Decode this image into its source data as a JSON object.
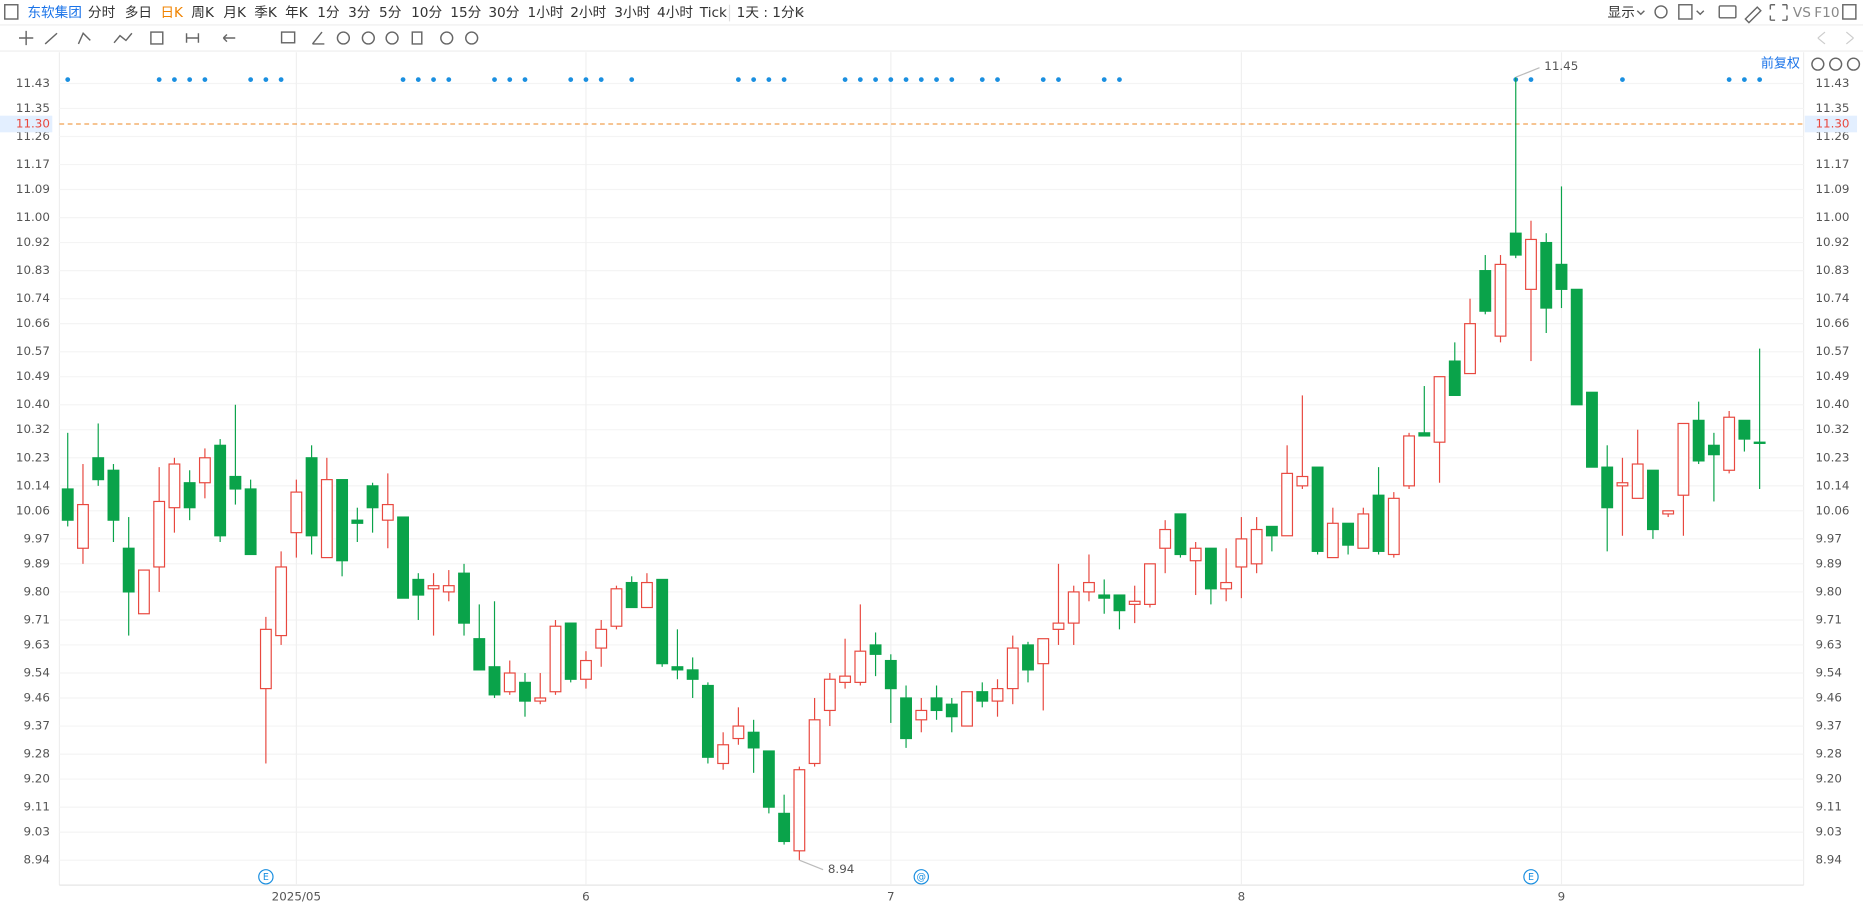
{
  "toolbar": {
    "stock": "东软集团",
    "periods": [
      "分时",
      "多日",
      "日K",
      "周K",
      "月K",
      "季K",
      "年K",
      "1分",
      "3分",
      "5分",
      "10分",
      "15分",
      "30分",
      "1小时",
      "2小时",
      "3小时",
      "4小时",
      "Tick"
    ],
    "range": "1天 : 1分K",
    "display": "显示",
    "vs": "VS",
    "f10": "F10",
    "adjust": "前复权"
  },
  "chart_data": {
    "type": "candlestick",
    "up_color": "#e8483f",
    "down_color": "#0aa34a",
    "grid": true,
    "categories": [
      null,
      null,
      null,
      null,
      null,
      null,
      null,
      null,
      null,
      null,
      null,
      null,
      null,
      null,
      null,
      "2025/05",
      null,
      null,
      null,
      null,
      null,
      null,
      null,
      null,
      null,
      null,
      null,
      null,
      null,
      null,
      null,
      null,
      null,
      null,
      "6",
      null,
      null,
      null,
      null,
      null,
      null,
      null,
      null,
      null,
      null,
      null,
      null,
      null,
      null,
      null,
      null,
      null,
      null,
      null,
      "7",
      null,
      null,
      null,
      null,
      null,
      null,
      null,
      null,
      null,
      null,
      null,
      null,
      null,
      null,
      null,
      null,
      null,
      null,
      null,
      null,
      null,
      null,
      "8",
      null,
      null,
      null,
      null,
      null,
      null,
      null,
      null,
      null,
      null,
      null,
      null,
      null,
      null,
      null,
      null,
      null,
      null,
      null,
      null,
      "9",
      null,
      null,
      null,
      null,
      null,
      null,
      null,
      null,
      null,
      null,
      null,
      null,
      null
    ],
    "open": [
      10.13,
      9.94,
      10.23,
      10.19,
      9.94,
      9.73,
      9.88,
      10.07,
      10.15,
      10.15,
      10.27,
      10.17,
      10.13,
      9.49,
      9.66,
      9.99,
      10.23,
      9.91,
      10.16,
      10.03,
      10.14,
      10.03,
      10.04,
      9.84,
      9.81,
      9.8,
      9.86,
      9.65,
      9.56,
      9.48,
      9.51,
      9.45,
      9.48,
      9.7,
      9.52,
      9.62,
      9.69,
      9.83,
      9.75,
      9.84,
      9.56,
      9.55,
      9.5,
      9.25,
      9.33,
      9.35,
      9.29,
      9.09,
      8.97,
      9.25,
      9.42,
      9.51,
      9.51,
      9.63,
      9.58,
      9.46,
      9.39,
      9.46,
      9.44,
      9.37,
      9.48,
      9.45,
      9.49,
      9.63,
      9.57,
      9.68,
      9.7,
      9.8,
      9.79,
      9.79,
      9.76,
      9.76,
      9.94,
      10.05,
      9.9,
      9.94,
      9.81,
      9.88,
      9.89,
      10.01,
      9.98,
      10.14,
      10.2,
      9.91,
      10.02,
      9.94,
      10.11,
      9.92,
      10.14,
      10.31,
      10.28,
      10.54,
      10.5,
      10.83,
      10.62,
      10.95,
      10.77,
      10.92,
      10.85,
      10.77,
      10.44,
      10.2,
      10.14,
      10.1,
      10.19,
      10.05,
      10.11,
      10.35,
      10.27,
      10.19,
      10.35,
      10.28
    ],
    "high": [
      10.31,
      10.21,
      10.34,
      10.21,
      10.04,
      9.87,
      10.2,
      10.23,
      10.19,
      10.26,
      10.29,
      10.4,
      10.16,
      9.72,
      9.93,
      10.16,
      10.27,
      10.23,
      10.16,
      10.07,
      10.15,
      10.18,
      10.04,
      9.86,
      9.86,
      9.87,
      9.89,
      9.76,
      9.77,
      9.58,
      9.54,
      9.54,
      9.71,
      9.7,
      9.61,
      9.71,
      9.82,
      9.85,
      9.86,
      9.84,
      9.68,
      9.59,
      9.51,
      9.35,
      9.43,
      9.39,
      9.29,
      9.15,
      9.24,
      9.46,
      9.54,
      9.65,
      9.76,
      9.67,
      9.6,
      9.5,
      9.46,
      9.5,
      9.46,
      9.48,
      9.51,
      9.52,
      9.66,
      9.64,
      9.65,
      9.89,
      9.82,
      9.92,
      9.84,
      9.79,
      9.82,
      9.89,
      10.03,
      10.05,
      9.96,
      9.94,
      9.94,
      10.04,
      10.04,
      10.01,
      10.27,
      10.43,
      10.2,
      10.07,
      10.02,
      10.07,
      10.2,
      10.12,
      10.31,
      10.46,
      10.49,
      10.6,
      10.74,
      10.88,
      10.88,
      11.45,
      10.99,
      10.95,
      11.1,
      10.77,
      10.44,
      10.27,
      10.23,
      10.32,
      10.19,
      10.06,
      10.34,
      10.41,
      10.31,
      10.38,
      10.35,
      10.58
    ],
    "low": [
      10.01,
      9.89,
      10.14,
      9.96,
      9.66,
      9.73,
      9.8,
      9.99,
      10.03,
      10.1,
      9.96,
      10.08,
      9.92,
      9.25,
      9.63,
      9.91,
      9.92,
      9.91,
      9.85,
      9.96,
      9.99,
      9.94,
      9.78,
      9.71,
      9.66,
      9.77,
      9.66,
      9.55,
      9.46,
      9.47,
      9.4,
      9.44,
      9.47,
      9.51,
      9.49,
      9.56,
      9.68,
      9.75,
      9.75,
      9.56,
      9.52,
      9.46,
      9.25,
      9.23,
      9.31,
      9.22,
      9.09,
      8.99,
      8.94,
      9.24,
      9.37,
      9.49,
      9.5,
      9.53,
      9.38,
      9.3,
      9.35,
      9.39,
      9.35,
      9.37,
      9.43,
      9.4,
      9.44,
      9.51,
      9.42,
      9.63,
      9.63,
      9.77,
      9.73,
      9.68,
      9.7,
      9.75,
      9.86,
      9.91,
      9.79,
      9.76,
      9.77,
      9.78,
      9.86,
      9.93,
      9.98,
      10.13,
      9.92,
      9.91,
      9.92,
      9.94,
      9.92,
      9.91,
      10.13,
      10.3,
      10.15,
      10.43,
      10.5,
      10.69,
      10.6,
      10.87,
      10.54,
      10.63,
      10.71,
      10.4,
      10.2,
      9.93,
      9.98,
      10.1,
      9.97,
      10.04,
      9.98,
      10.21,
      10.09,
      10.18,
      10.25,
      10.13
    ],
    "close": [
      10.03,
      10.08,
      10.16,
      10.03,
      9.8,
      9.87,
      10.09,
      10.21,
      10.07,
      10.23,
      9.98,
      10.13,
      9.92,
      9.68,
      9.88,
      10.12,
      9.98,
      10.16,
      9.9,
      10.02,
      10.07,
      10.08,
      9.78,
      9.79,
      9.82,
      9.82,
      9.7,
      9.55,
      9.47,
      9.54,
      9.45,
      9.46,
      9.69,
      9.52,
      9.58,
      9.68,
      9.81,
      9.75,
      9.83,
      9.57,
      9.55,
      9.52,
      9.27,
      9.31,
      9.37,
      9.3,
      9.11,
      9.0,
      9.23,
      9.39,
      9.52,
      9.53,
      9.61,
      9.6,
      9.49,
      9.33,
      9.42,
      9.42,
      9.4,
      9.48,
      9.45,
      9.49,
      9.62,
      9.55,
      9.65,
      9.7,
      9.8,
      9.83,
      9.78,
      9.74,
      9.77,
      9.89,
      10.0,
      9.92,
      9.94,
      9.81,
      9.83,
      9.97,
      10.0,
      9.98,
      10.18,
      10.17,
      9.93,
      10.02,
      9.95,
      10.05,
      9.93,
      10.1,
      10.3,
      10.3,
      10.49,
      10.43,
      10.66,
      10.7,
      10.85,
      10.88,
      10.93,
      10.71,
      10.77,
      10.4,
      10.2,
      10.07,
      10.15,
      10.21,
      10.0,
      10.06,
      10.34,
      10.22,
      10.24,
      10.36,
      10.29,
      10.28
    ],
    "ylim": [
      8.86,
      11.53
    ],
    "yticks": [
      11.43,
      11.35,
      11.26,
      11.17,
      11.09,
      {
        "value": 11,
        "label": "11.00"
      },
      10.92,
      10.83,
      10.74,
      10.66,
      10.57,
      10.49,
      {
        "value": 10.4,
        "label": "10.40"
      },
      10.32,
      10.23,
      10.14,
      10.06,
      9.97,
      9.89,
      {
        "value": 9.8,
        "label": "9.80"
      },
      9.71,
      9.63,
      9.54,
      9.46,
      9.37,
      9.28,
      {
        "value": 9.2,
        "label": "9.20"
      },
      9.11,
      9.03,
      8.94
    ],
    "ref_line": {
      "value": 11.3,
      "label": "11.30",
      "color": "#f0a050"
    },
    "event_dots": [
      0,
      6,
      7,
      8,
      9,
      12,
      13,
      14,
      22,
      23,
      24,
      25,
      28,
      29,
      30,
      33,
      34,
      35,
      37,
      44,
      45,
      46,
      47,
      51,
      52,
      53,
      54,
      55,
      56,
      57,
      58,
      60,
      61,
      64,
      65,
      68,
      69,
      95,
      96,
      102,
      109,
      110,
      111
    ],
    "event_icons": [
      {
        "index": 13,
        "label": "E"
      },
      {
        "index": 56,
        "label": "@"
      },
      {
        "index": 96,
        "label": "E"
      }
    ]
  }
}
